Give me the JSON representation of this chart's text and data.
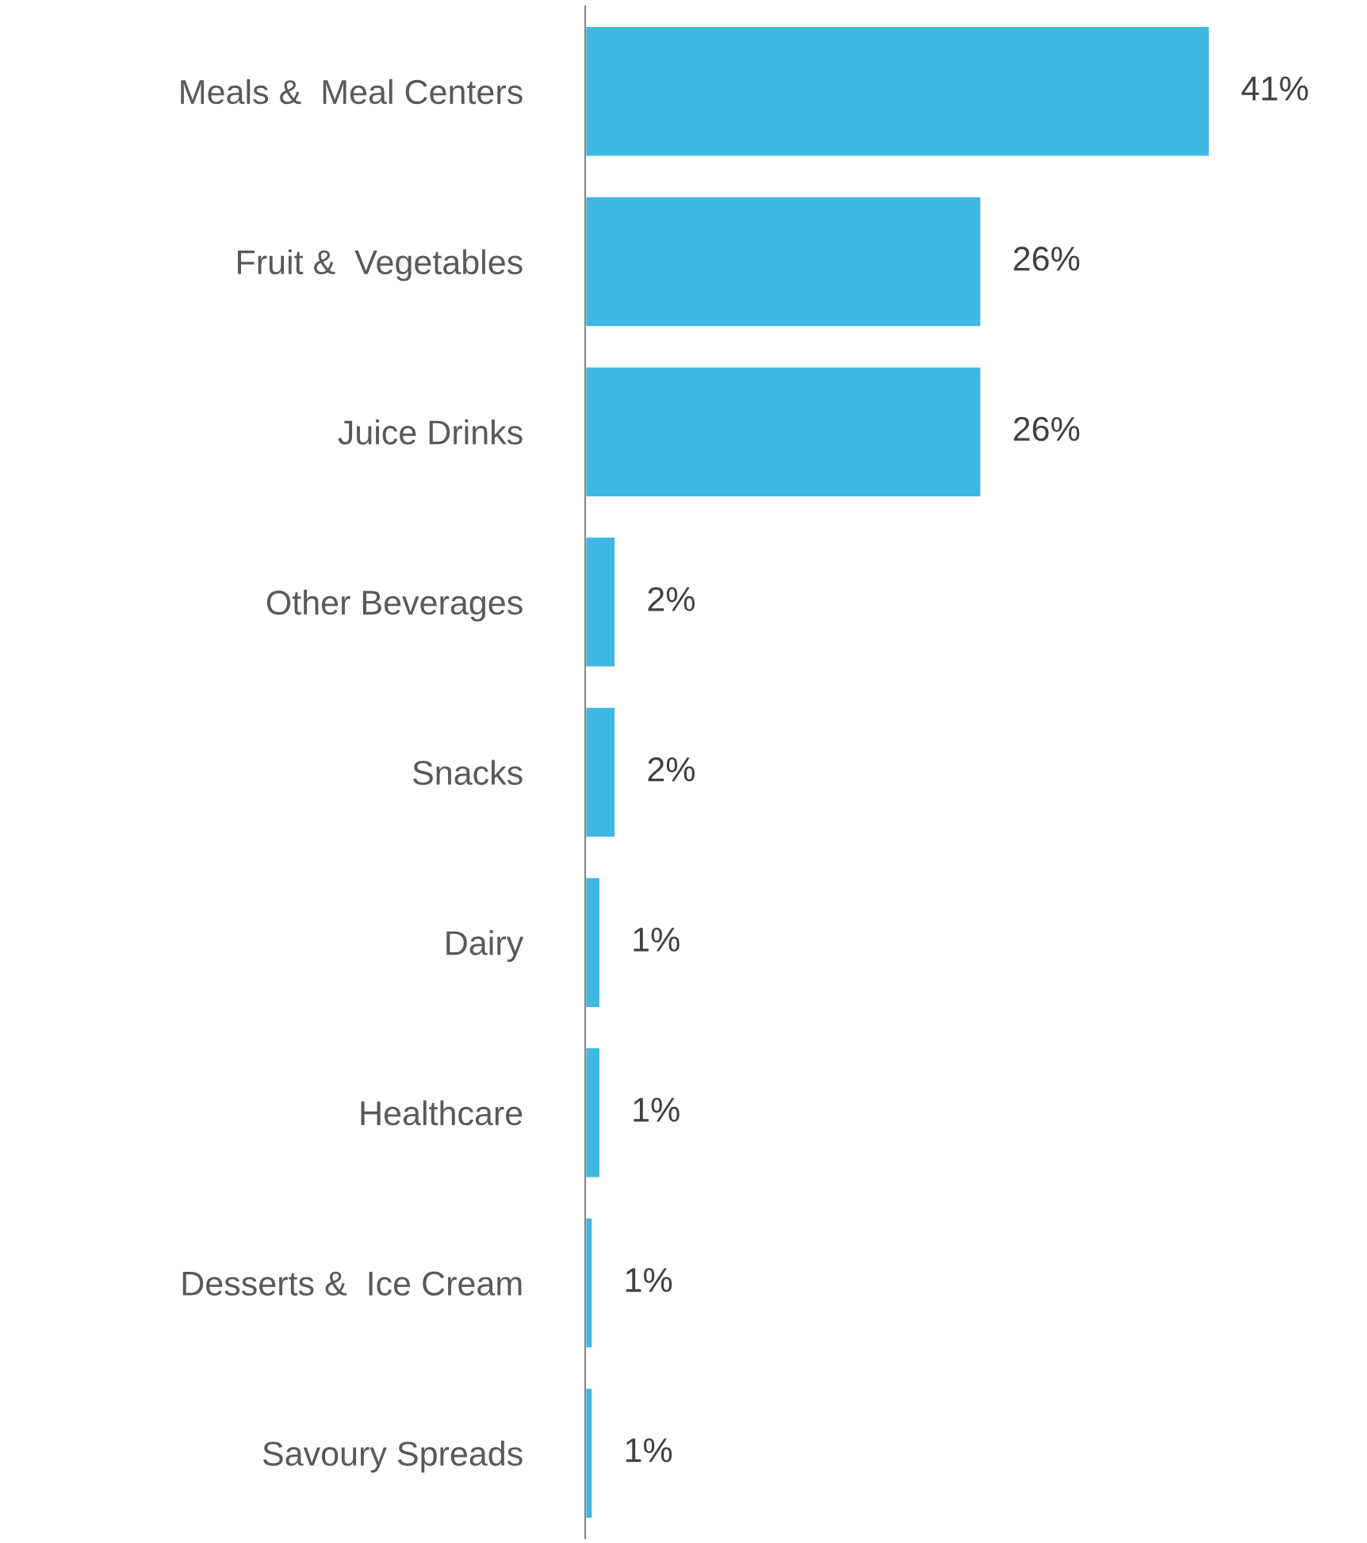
{
  "chart_data": {
    "type": "bar",
    "orientation": "horizontal",
    "categories": [
      "Meals &  Meal Centers",
      "Fruit &  Vegetables",
      "Juice Drinks",
      "Other Beverages",
      "Snacks",
      "Dairy",
      "Healthcare",
      "Desserts &  Ice Cream",
      "Savoury Spreads"
    ],
    "values": [
      41,
      26,
      26,
      2,
      2,
      1,
      1,
      0.5,
      0.5
    ],
    "value_labels": [
      "41%",
      "26%",
      "26%",
      "2%",
      "2%",
      "1%",
      "1%",
      "1%",
      "1%"
    ],
    "color": "#3db7e4",
    "grid": false,
    "legend": false
  }
}
